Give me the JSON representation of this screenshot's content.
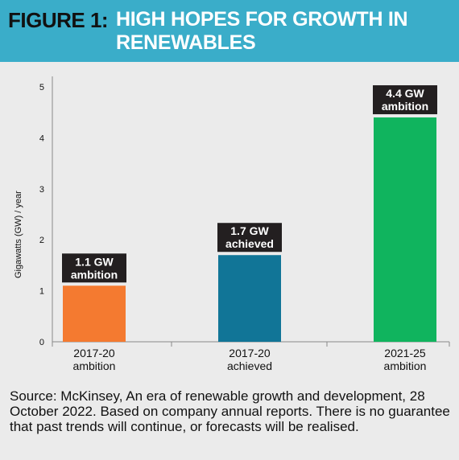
{
  "figure": {
    "label": "FIGURE 1:",
    "title": "HIGH HOPES FOR GROWTH IN RENEWABLES"
  },
  "colors": {
    "header_bg": "#3aadc9",
    "page_bg": "#ebebeb",
    "label_box": "#231f20"
  },
  "chart_data": {
    "type": "bar",
    "categories": [
      [
        "2017-20",
        "ambition"
      ],
      [
        "2017-20",
        "achieved"
      ],
      [
        "2021-25",
        "ambition"
      ]
    ],
    "values": [
      1.1,
      1.7,
      4.4
    ],
    "data_labels": [
      [
        "1.1 GW",
        "ambition"
      ],
      [
        "1.7 GW",
        "achieved"
      ],
      [
        "4.4 GW",
        "ambition"
      ]
    ],
    "bar_colors": [
      "#f47a30",
      "#117597",
      "#10b45e"
    ],
    "ylabel": "Gigawatts (GW) / year",
    "ylim": [
      0,
      5
    ],
    "yticks": [
      0,
      1,
      2,
      3,
      4,
      5
    ],
    "grid": false
  },
  "source": "Source: McKinsey, An era of renewable growth and development, 28 October 2022. Based on company annual reports. There is no guarantee that past trends will continue, or forecasts will be realised."
}
